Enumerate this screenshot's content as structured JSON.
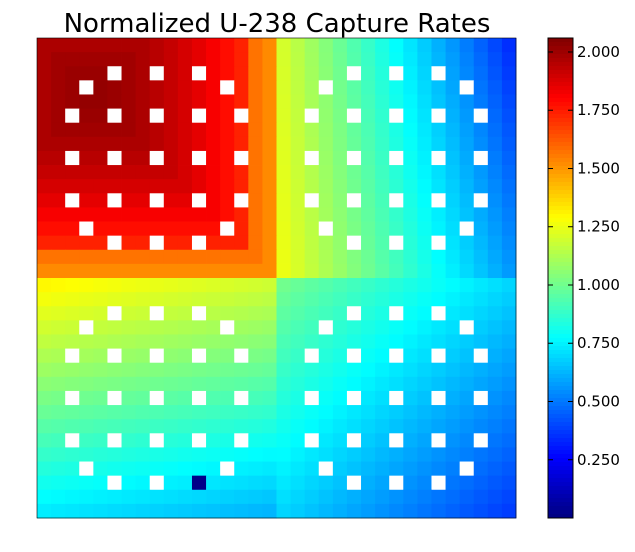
{
  "chart_data": {
    "type": "heatmap",
    "title": "Normalized U-238 Capture Rates",
    "xlabel": "",
    "ylabel": "",
    "colormap": "jet",
    "grid": false,
    "colorbar": {
      "placement": "right",
      "range": [
        0.0,
        2.06
      ],
      "ticks": [
        0.25,
        0.5,
        0.75,
        1.0,
        1.25,
        1.5,
        1.75,
        2.0
      ],
      "tick_labels": [
        "0.250",
        "0.500",
        "0.750",
        "1.000",
        "1.250",
        "1.500",
        "1.750",
        "2.000"
      ]
    },
    "grid_size": [
      34,
      34
    ],
    "assemblies": [
      {
        "name": "top-left",
        "rows": [
          0,
          16
        ],
        "cols": [
          0,
          16
        ],
        "center_value": 2.02,
        "edge_value": 1.62,
        "corner_value": 1.45
      },
      {
        "name": "top-right",
        "rows": [
          0,
          16
        ],
        "cols": [
          17,
          33
        ],
        "center_value": 0.95,
        "near_edge_value": 1.25,
        "far_corner_value": 0.4
      },
      {
        "name": "bottom-left",
        "rows": [
          17,
          33
        ],
        "cols": [
          0,
          16
        ],
        "center_value": 0.95,
        "near_edge_value": 1.3,
        "far_corner_value": 0.55
      },
      {
        "name": "bottom-right",
        "rows": [
          17,
          33
        ],
        "cols": [
          17,
          33
        ],
        "center_value": 0.65,
        "near_edge_value": 1.0,
        "far_corner_value": 0.38
      }
    ],
    "empty_cells_per_assembly": [
      [
        2,
        5
      ],
      [
        2,
        8
      ],
      [
        2,
        11
      ],
      [
        3,
        3
      ],
      [
        3,
        13
      ],
      [
        5,
        2
      ],
      [
        5,
        5
      ],
      [
        5,
        8
      ],
      [
        5,
        11
      ],
      [
        5,
        14
      ],
      [
        8,
        2
      ],
      [
        8,
        5
      ],
      [
        8,
        8
      ],
      [
        8,
        11
      ],
      [
        8,
        14
      ],
      [
        11,
        2
      ],
      [
        11,
        5
      ],
      [
        11,
        8
      ],
      [
        11,
        11
      ],
      [
        11,
        14
      ],
      [
        13,
        3
      ],
      [
        13,
        13
      ],
      [
        14,
        5
      ],
      [
        14,
        8
      ],
      [
        14,
        11
      ]
    ],
    "low_cell": {
      "row": 31,
      "col": 11,
      "value": 0.02
    }
  }
}
